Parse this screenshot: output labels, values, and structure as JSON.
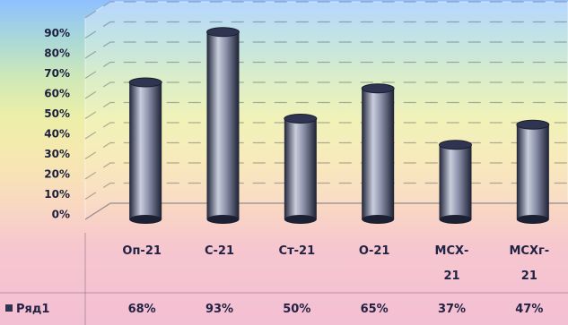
{
  "chart_data": {
    "type": "bar",
    "categories": [
      "Оп-21",
      "С-21",
      "Ст-21",
      "О-21",
      "МСХ-21",
      "МСХг-21"
    ],
    "category_lines": [
      [
        "Оп-21"
      ],
      [
        "С-21"
      ],
      [
        "Ст-21"
      ],
      [
        "О-21"
      ],
      [
        "МСХ-",
        "21"
      ],
      [
        "МСХг-",
        "21"
      ]
    ],
    "series": [
      {
        "name": "Ряд1",
        "values": [
          68,
          93,
          50,
          65,
          37,
          47
        ]
      }
    ],
    "value_labels": [
      "68%",
      "93%",
      "50%",
      "65%",
      "37%",
      "47%"
    ],
    "yticks": [
      "0%",
      "10%",
      "20%",
      "30%",
      "40%",
      "50%",
      "60%",
      "70%",
      "80%",
      "90%"
    ],
    "ylim": [
      0,
      100
    ],
    "grid": true,
    "legend": "bottom-left in data table",
    "colors": {
      "bar": "#2f3550",
      "bar_highlight": "#c9cedd",
      "text": "#222244"
    }
  }
}
